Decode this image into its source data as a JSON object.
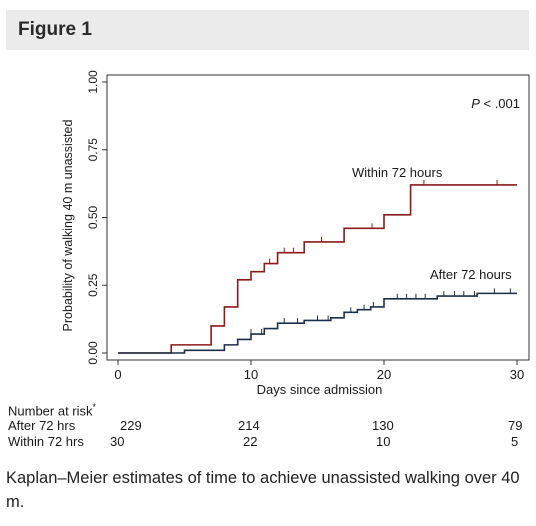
{
  "figure_label": "Figure 1",
  "caption": "Kaplan–Meier estimates of time to achieve unassisted walking over 40 m.",
  "chart_data": {
    "type": "line",
    "title": "",
    "xlabel": "Days since admission",
    "ylabel": "Probability of walking 40 m unassisted",
    "xlim": [
      0,
      30
    ],
    "ylim": [
      0,
      1
    ],
    "x_ticks": [
      0,
      10,
      20,
      30
    ],
    "x_tick_labels": [
      "0",
      "10",
      "20",
      "30"
    ],
    "y_ticks": [
      0,
      0.25,
      0.5,
      0.75,
      1.0
    ],
    "y_tick_labels": [
      "0.00",
      "0.25",
      "0.50",
      "0.75",
      "1.00"
    ],
    "annotation": "P < .001",
    "grid": false,
    "step": true,
    "series": [
      {
        "name": "Within 72 hours",
        "color": "#8b1a1a",
        "points": [
          [
            0,
            0
          ],
          [
            4,
            0.03
          ],
          [
            7,
            0.1
          ],
          [
            8,
            0.17
          ],
          [
            9,
            0.27
          ],
          [
            10,
            0.3
          ],
          [
            11,
            0.33
          ],
          [
            12,
            0.37
          ],
          [
            14,
            0.41
          ],
          [
            17,
            0.46
          ],
          [
            20,
            0.51
          ],
          [
            22,
            0.62
          ],
          [
            30,
            0.62
          ]
        ],
        "censor_x": [
          11.4,
          12.5,
          13.2,
          15.3,
          19.1,
          23,
          28.5
        ]
      },
      {
        "name": "After 72 hours",
        "color": "#1c2f4a",
        "points": [
          [
            0,
            0
          ],
          [
            5,
            0.01
          ],
          [
            8,
            0.03
          ],
          [
            9,
            0.05
          ],
          [
            10,
            0.07
          ],
          [
            11,
            0.09
          ],
          [
            12,
            0.11
          ],
          [
            14,
            0.12
          ],
          [
            16,
            0.13
          ],
          [
            17,
            0.15
          ],
          [
            18,
            0.16
          ],
          [
            19,
            0.17
          ],
          [
            20,
            0.2
          ],
          [
            24,
            0.21
          ],
          [
            27,
            0.22
          ],
          [
            30,
            0.22
          ]
        ],
        "censor_x": [
          10,
          10.8,
          12.5,
          13.5,
          15,
          15.8,
          17.5,
          18.5,
          19.2,
          21,
          21.7,
          22.4,
          23.1,
          24.5,
          25.3,
          26,
          26.8,
          28.3,
          29.5
        ]
      }
    ]
  },
  "risk_table": {
    "header": "Number at risk",
    "header_mark": "*",
    "rows": [
      {
        "label": "After 72 hrs",
        "values": [
          "229",
          "214",
          "130",
          "79"
        ]
      },
      {
        "label": "Within 72 hrs",
        "values": [
          "30",
          "22",
          "10",
          "5"
        ]
      }
    ]
  }
}
